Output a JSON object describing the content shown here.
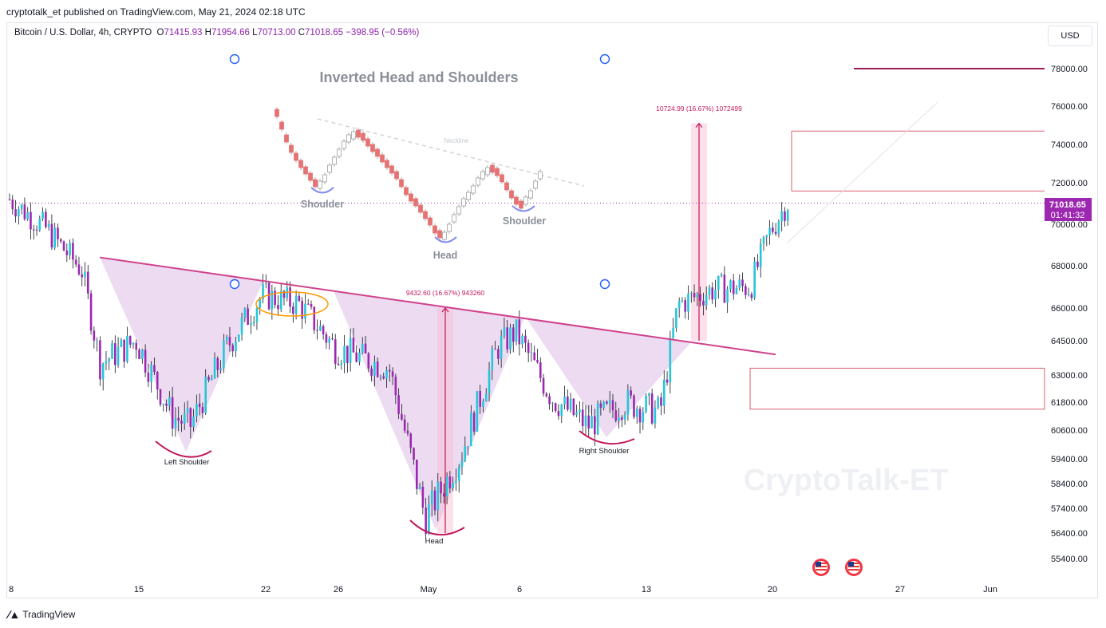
{
  "publisher": "cryptotalk_et published on TradingView.com, May 21, 2024 02:18 UTC",
  "legend": {
    "symbol": "Bitcoin / U.S. Dollar, 4h, CRYPTO",
    "open_label": "O",
    "open": "71415.93",
    "high_label": "H",
    "high": "71954.66",
    "low_label": "L",
    "low": "70713.00",
    "close_label": "C",
    "close": "71018.65",
    "change": "−398.95 (−0.56%)"
  },
  "currency": "USD",
  "colors": {
    "up": "#26c6da",
    "down": "#9c27b0",
    "pattern_fill": "#e9d5ef",
    "neckline": "#d0428c",
    "price_label": "#9c27b0",
    "target_box": "#d95f6e"
  },
  "watermark": "CryptoTalk-ET",
  "footer": {
    "brand": "TradingView",
    "logo_icon": "tradingview-logo-icon"
  },
  "price_label": {
    "price": "71018.65",
    "countdown": "01:41:32"
  },
  "annotations": {
    "left_shoulder": "Left Shoulder",
    "head": "Head",
    "right_shoulder": "Right Shoulder",
    "measure_1": "9432.60 (16.67%) 943260",
    "measure_2": "10724.99 (16.67%) 1072499"
  },
  "inset": {
    "title": "Inverted Head and Shoulders",
    "neckline": "Neckline",
    "shoulder_left": "Shoulder",
    "head": "Head",
    "shoulder_right": "Shoulder"
  },
  "chart_data": {
    "type": "candlestick",
    "title": "",
    "x_axis": {
      "ticks": [
        "8",
        "15",
        "22",
        "26",
        "May",
        "6",
        "13",
        "20",
        "27",
        "Jun"
      ]
    },
    "y_axis": {
      "ticks": [
        78000,
        76000,
        74000,
        72000,
        70000,
        68000,
        66000,
        64500,
        63000,
        61800,
        60600,
        59400,
        58400,
        57400,
        56400,
        55400
      ],
      "range": [
        54700,
        79000
      ]
    },
    "last_price": 71018.65,
    "series": [
      {
        "date": "2024-04-08",
        "close": 71200
      },
      {
        "date": "2024-04-10",
        "close": 69800
      },
      {
        "date": "2024-04-12",
        "close": 67800
      },
      {
        "date": "2024-04-13",
        "close": 63500
      },
      {
        "date": "2024-04-15",
        "close": 64500
      },
      {
        "date": "2024-04-17",
        "close": 61200
      },
      {
        "date": "2024-04-18",
        "close": 60800
      },
      {
        "date": "2024-04-20",
        "close": 64200
      },
      {
        "date": "2024-04-22",
        "close": 66600
      },
      {
        "date": "2024-04-24",
        "close": 66200
      },
      {
        "date": "2024-04-26",
        "close": 64200
      },
      {
        "date": "2024-04-29",
        "close": 63300
      },
      {
        "date": "2024-05-01",
        "close": 57000
      },
      {
        "date": "2024-05-03",
        "close": 59600
      },
      {
        "date": "2024-05-05",
        "close": 64200
      },
      {
        "date": "2024-05-06",
        "close": 64900
      },
      {
        "date": "2024-05-08",
        "close": 62000
      },
      {
        "date": "2024-05-10",
        "close": 60800
      },
      {
        "date": "2024-05-12",
        "close": 61800
      },
      {
        "date": "2024-05-14",
        "close": 61400
      },
      {
        "date": "2024-05-15",
        "close": 66200
      },
      {
        "date": "2024-05-17",
        "close": 66900
      },
      {
        "date": "2024-05-19",
        "close": 67000
      },
      {
        "date": "2024-05-20",
        "close": 69500
      },
      {
        "date": "2024-05-21",
        "close": 71018.65
      }
    ],
    "neckline": [
      {
        "date": "2024-04-13",
        "price": 68400
      },
      {
        "date": "2024-05-21",
        "price": 63900
      }
    ],
    "target_levels": [
      74700,
      71600,
      78000
    ],
    "zone": [
      61500,
      63300
    ],
    "measurements": [
      {
        "from": 56400,
        "to": 66000,
        "label": "9432.60 (16.67%) 943260"
      },
      {
        "from": 64500,
        "to": 75100,
        "label": "10724.99 (16.67%) 1072499"
      }
    ]
  }
}
